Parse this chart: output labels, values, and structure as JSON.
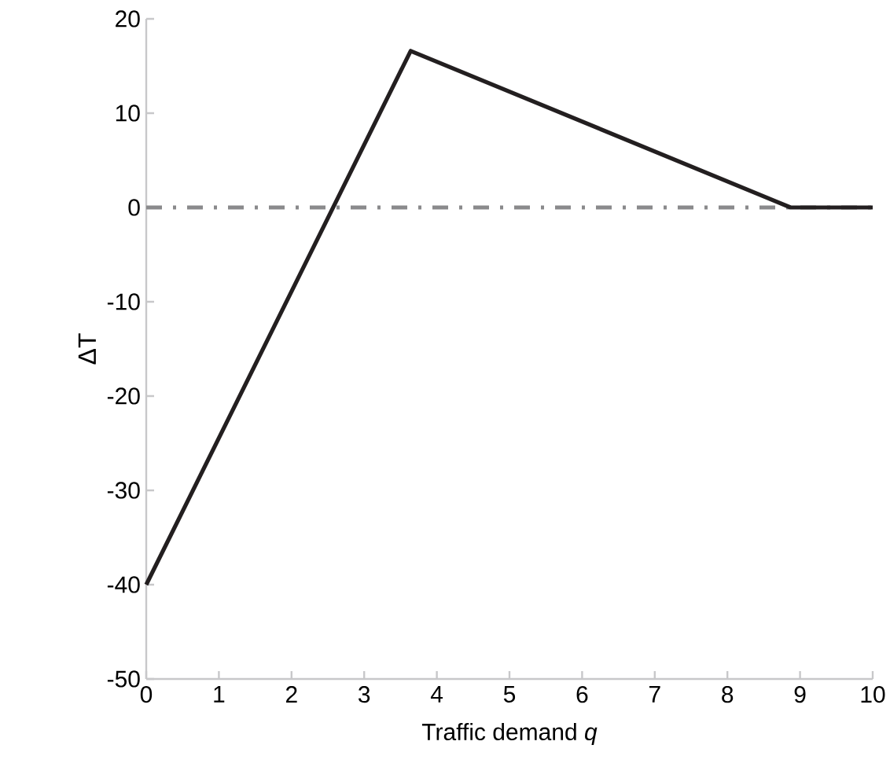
{
  "chart_data": {
    "type": "line",
    "xlabel": "Traffic demand *q*",
    "ylabel": "ΔT",
    "x": [
      0,
      3.64,
      8.87,
      10
    ],
    "series": [
      {
        "color": "#231f20",
        "values": [
          -40,
          16.6,
          0,
          0
        ]
      }
    ],
    "xlim": [
      0,
      10
    ],
    "ylim": [
      -50,
      20
    ],
    "xticks": [
      0,
      1,
      2,
      3,
      4,
      5,
      6,
      7,
      8,
      9,
      10
    ],
    "yticks": [
      -50,
      -40,
      -30,
      -20,
      -10,
      0,
      10,
      20
    ],
    "ref_lines": [
      {
        "axis": "y",
        "value": 0,
        "color": "#8a8a8c",
        "line_style": "dashdot"
      }
    ]
  }
}
